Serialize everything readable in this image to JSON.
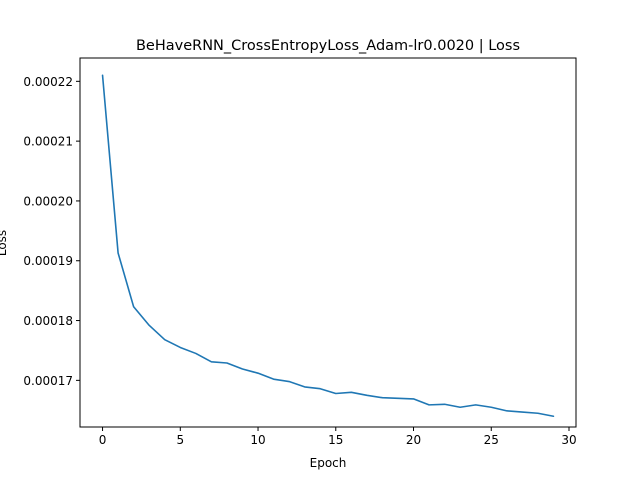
{
  "chart_data": {
    "type": "line",
    "title": "BeHaveRNN_CrossEntropyLoss_Adam-lr0.0020 | Loss",
    "xlabel": "Epoch",
    "ylabel": "Loss",
    "xlim": [
      -1.45,
      30.45
    ],
    "ylim": [
      0.0001622,
      0.0002239
    ],
    "xticks": [
      0,
      5,
      10,
      15,
      20,
      25,
      30
    ],
    "yticks": [
      0.00017,
      0.00018,
      0.00019,
      0.0002,
      0.00021,
      0.00022
    ],
    "ytick_labels": [
      "0.00017",
      "0.00018",
      "0.00019",
      "0.00020",
      "0.00021",
      "0.00022"
    ],
    "grid": false,
    "line_color": "#1f77b4",
    "series": [
      {
        "x": [
          0,
          1,
          2,
          3,
          4,
          5,
          6,
          7,
          8,
          9,
          10,
          11,
          12,
          13,
          14,
          15,
          16,
          17,
          18,
          19,
          20,
          21,
          22,
          23,
          24,
          25,
          26,
          27,
          28,
          29
        ],
        "values": [
          0.000221,
          0.0001913,
          0.0001823,
          0.0001792,
          0.0001768,
          0.0001755,
          0.0001745,
          0.0001731,
          0.0001729,
          0.0001719,
          0.0001712,
          0.0001702,
          0.0001698,
          0.0001689,
          0.0001686,
          0.0001678,
          0.000168,
          0.0001675,
          0.0001671,
          0.000167,
          0.0001669,
          0.0001659,
          0.000166,
          0.0001655,
          0.0001659,
          0.0001655,
          0.0001649,
          0.0001647,
          0.0001645,
          0.000164
        ]
      }
    ]
  }
}
